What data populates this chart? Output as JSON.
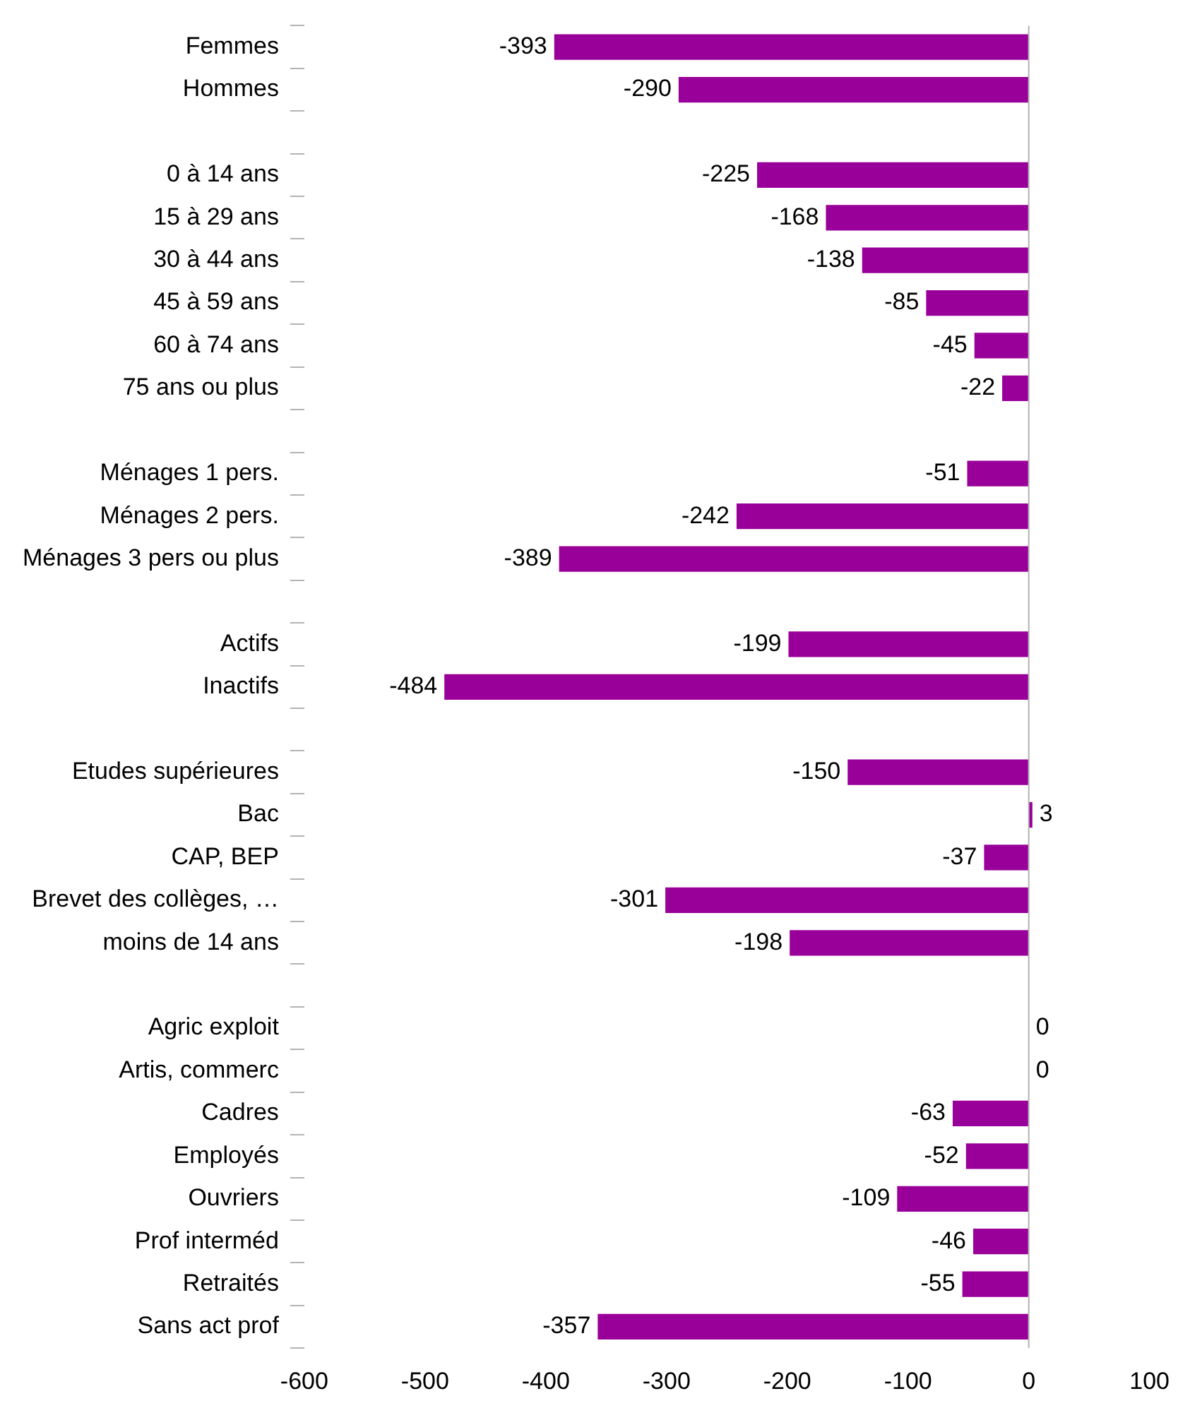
{
  "chart_data": {
    "type": "bar",
    "orientation": "horizontal",
    "categories": [
      "Femmes",
      "Hommes",
      null,
      "0 à 14 ans",
      "15 à 29 ans",
      "30 à 44 ans",
      "45 à 59 ans",
      "60 à 74 ans",
      "75 ans ou plus",
      null,
      "Ménages 1 pers.",
      "Ménages 2 pers.",
      "Ménages 3 pers ou plus",
      null,
      "Actifs",
      "Inactifs",
      null,
      "Etudes supérieures",
      "Bac",
      "CAP, BEP",
      "Brevet des collèges, …",
      "moins de 14 ans",
      null,
      "Agric exploit",
      "Artis, commerc",
      "Cadres",
      "Employés",
      "Ouvriers",
      "Prof interméd",
      "Retraités",
      "Sans act prof"
    ],
    "values": [
      -393,
      -290,
      null,
      -225,
      -168,
      -138,
      -85,
      -45,
      -22,
      null,
      -51,
      -242,
      -389,
      null,
      -199,
      -484,
      null,
      -150,
      3,
      -37,
      -301,
      -198,
      null,
      0,
      0,
      -63,
      -52,
      -109,
      -46,
      -55,
      -357
    ],
    "color": "#990099",
    "xlim": [
      -600,
      100
    ],
    "xticks": [
      -600,
      -500,
      -400,
      -300,
      -200,
      -100,
      0,
      100
    ],
    "ref_lines": [
      {
        "axis": "x",
        "value": 0,
        "color": "#b3b3b3"
      }
    ],
    "data_labels": true,
    "grid": false,
    "legend": false
  }
}
